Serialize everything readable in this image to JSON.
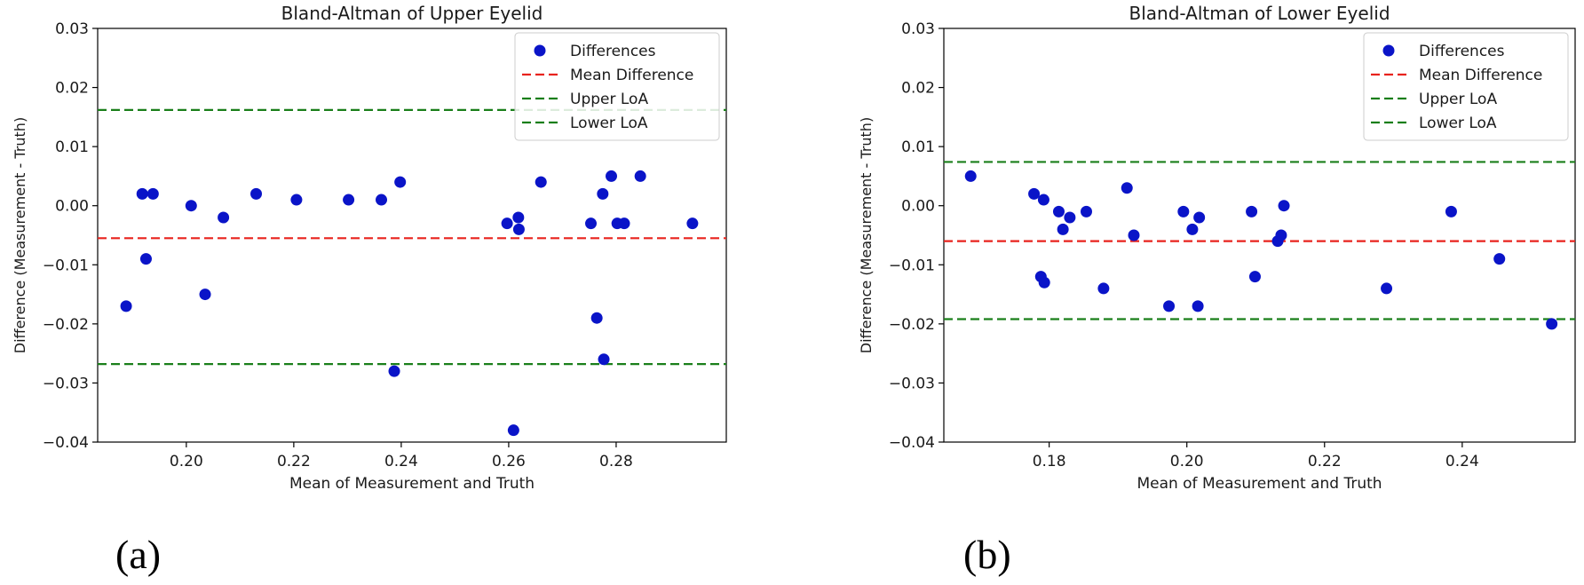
{
  "chart_data": [
    {
      "type": "scatter",
      "title": "Bland-Altman of Upper Eyelid",
      "xlabel": "Mean of Measurement and Truth",
      "ylabel": "Difference (Measurement - Truth)",
      "xlim": [
        0.1835,
        0.3005
      ],
      "ylim": [
        -0.04,
        0.03
      ],
      "xticks": [
        0.2,
        0.22,
        0.24,
        0.26,
        0.28
      ],
      "xtick_labels": [
        "0.20",
        "0.22",
        "0.24",
        "0.26",
        "0.28"
      ],
      "yticks": [
        0.03,
        0.02,
        0.01,
        0.0,
        -0.01,
        -0.02,
        -0.03,
        -0.04
      ],
      "ytick_labels": [
        "0.03",
        "0.02",
        "0.01",
        "0.00",
        "−0.01",
        "−0.02",
        "−0.03",
        "−0.04"
      ],
      "legend_position": "top-right",
      "legend": [
        "Differences",
        "Mean Difference",
        "Upper LoA",
        "Lower LoA"
      ],
      "mean_difference": -0.0055,
      "upper_loa": 0.0162,
      "lower_loa": -0.0268,
      "points": [
        {
          "x": 0.1888,
          "y": -0.017
        },
        {
          "x": 0.1918,
          "y": 0.002
        },
        {
          "x": 0.1925,
          "y": -0.009
        },
        {
          "x": 0.1938,
          "y": 0.002
        },
        {
          "x": 0.2009,
          "y": 0.0
        },
        {
          "x": 0.2035,
          "y": -0.015
        },
        {
          "x": 0.2069,
          "y": -0.002
        },
        {
          "x": 0.213,
          "y": 0.002
        },
        {
          "x": 0.2205,
          "y": 0.001
        },
        {
          "x": 0.2302,
          "y": 0.001
        },
        {
          "x": 0.2363,
          "y": 0.001
        },
        {
          "x": 0.2387,
          "y": -0.028
        },
        {
          "x": 0.2398,
          "y": 0.004
        },
        {
          "x": 0.2597,
          "y": -0.003
        },
        {
          "x": 0.2609,
          "y": -0.038
        },
        {
          "x": 0.2618,
          "y": -0.002
        },
        {
          "x": 0.2619,
          "y": -0.004
        },
        {
          "x": 0.266,
          "y": 0.004
        },
        {
          "x": 0.2753,
          "y": -0.003
        },
        {
          "x": 0.2764,
          "y": -0.019
        },
        {
          "x": 0.2775,
          "y": 0.002
        },
        {
          "x": 0.2777,
          "y": -0.026
        },
        {
          "x": 0.2791,
          "y": 0.005
        },
        {
          "x": 0.2802,
          "y": -0.003
        },
        {
          "x": 0.2815,
          "y": -0.003
        },
        {
          "x": 0.2845,
          "y": 0.005
        },
        {
          "x": 0.2942,
          "y": -0.003
        }
      ]
    },
    {
      "type": "scatter",
      "title": "Bland-Altman of Lower Eyelid",
      "xlabel": "Mean of Measurement and Truth",
      "ylabel": "Difference (Measurement - Truth)",
      "xlim": [
        0.1647,
        0.2564
      ],
      "ylim": [
        -0.04,
        0.03
      ],
      "xticks": [
        0.18,
        0.2,
        0.22,
        0.24
      ],
      "xtick_labels": [
        "0.18",
        "0.20",
        "0.22",
        "0.24"
      ],
      "yticks": [
        0.03,
        0.02,
        0.01,
        0.0,
        -0.01,
        -0.02,
        -0.03,
        -0.04
      ],
      "ytick_labels": [
        "0.03",
        "0.02",
        "0.01",
        "0.00",
        "−0.01",
        "−0.02",
        "−0.03",
        "−0.04"
      ],
      "legend_position": "top-right",
      "legend": [
        "Differences",
        "Mean Difference",
        "Upper LoA",
        "Lower LoA"
      ],
      "mean_difference": -0.006,
      "upper_loa": 0.0074,
      "lower_loa": -0.0192,
      "points": [
        {
          "x": 0.1686,
          "y": 0.005
        },
        {
          "x": 0.1778,
          "y": 0.002
        },
        {
          "x": 0.1788,
          "y": -0.012
        },
        {
          "x": 0.1792,
          "y": 0.001
        },
        {
          "x": 0.1793,
          "y": -0.013
        },
        {
          "x": 0.1814,
          "y": -0.001
        },
        {
          "x": 0.182,
          "y": -0.004
        },
        {
          "x": 0.183,
          "y": -0.002
        },
        {
          "x": 0.1854,
          "y": -0.001
        },
        {
          "x": 0.1879,
          "y": -0.014
        },
        {
          "x": 0.1913,
          "y": 0.003
        },
        {
          "x": 0.1923,
          "y": -0.005
        },
        {
          "x": 0.1974,
          "y": -0.017
        },
        {
          "x": 0.1995,
          "y": -0.001
        },
        {
          "x": 0.2008,
          "y": -0.004
        },
        {
          "x": 0.2016,
          "y": -0.017
        },
        {
          "x": 0.2018,
          "y": -0.002
        },
        {
          "x": 0.2094,
          "y": -0.001
        },
        {
          "x": 0.2099,
          "y": -0.012
        },
        {
          "x": 0.2132,
          "y": -0.006
        },
        {
          "x": 0.2137,
          "y": -0.005
        },
        {
          "x": 0.2141,
          "y": 0.0
        },
        {
          "x": 0.229,
          "y": -0.014
        },
        {
          "x": 0.2384,
          "y": -0.001
        },
        {
          "x": 0.2454,
          "y": -0.009
        },
        {
          "x": 0.253,
          "y": -0.02
        }
      ]
    }
  ],
  "panel_labels": [
    "(a)",
    "(b)"
  ],
  "colors": {
    "points": "#0a14c8",
    "mean_line": "#e8231d",
    "loa_line": "#1a7f1a",
    "axis": "#000000",
    "text": "#1a1a1a"
  }
}
